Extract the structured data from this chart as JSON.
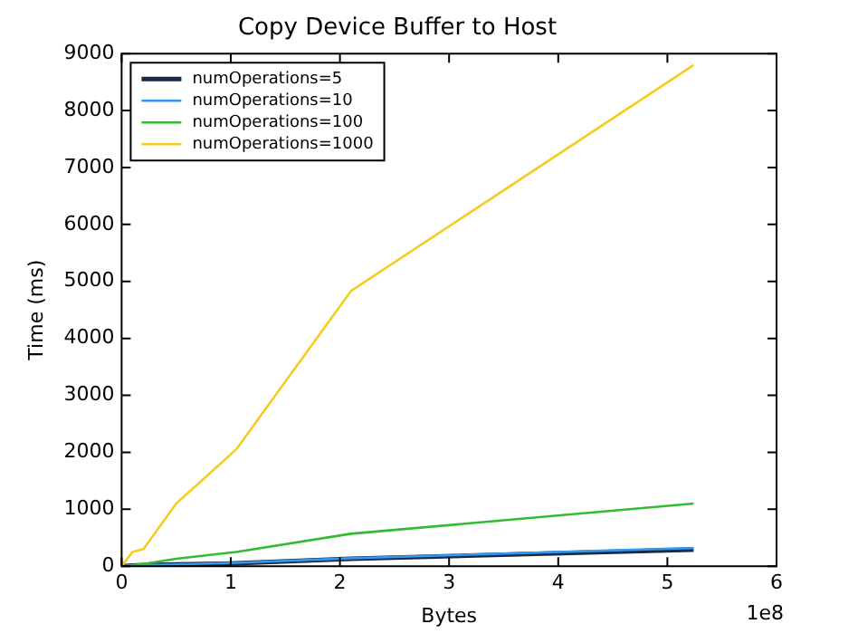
{
  "chart_data": {
    "type": "line",
    "title": "Copy Device Buffer to Host",
    "xlabel": "Bytes",
    "ylabel": "Time (ms)",
    "x": [
      0,
      0.1,
      0.2,
      0.5,
      1.05,
      2.1,
      5.24
    ],
    "series": [
      {
        "name": "numOperations=5",
        "color": "#1a2a44",
        "values": [
          0,
          10,
          20,
          30,
          50,
          130,
          290
        ]
      },
      {
        "name": "numOperations=10",
        "color": "#3399ee",
        "values": [
          0,
          10,
          20,
          30,
          60,
          140,
          320
        ]
      },
      {
        "name": "numOperations=100",
        "color": "#33bb33",
        "values": [
          0,
          20,
          40,
          130,
          250,
          570,
          1100
        ]
      },
      {
        "name": "numOperations=1000",
        "color": "#f5cc20",
        "values": [
          0,
          250,
          300,
          1100,
          2050,
          4830,
          8800
        ]
      }
    ],
    "xlim": [
      0,
      6
    ],
    "xticks": [
      0,
      1,
      2,
      3,
      4,
      5,
      6
    ],
    "ylim": [
      0,
      9000
    ],
    "yticks": [
      0,
      1000,
      2000,
      3000,
      4000,
      5000,
      6000,
      7000,
      8000,
      9000
    ],
    "annotations": [
      "1e8"
    ],
    "legend": "top left",
    "grid": false,
    "marker": "none",
    "line_style": "solid"
  }
}
